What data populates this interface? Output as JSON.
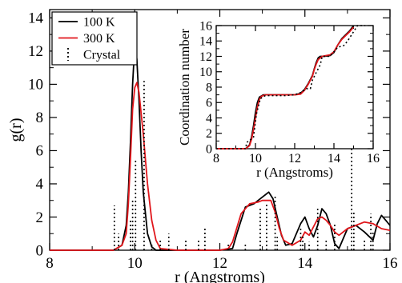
{
  "chart_data": [
    {
      "panel": "main",
      "type": "line",
      "xlabel": "r (Angstroms)",
      "ylabel": "g(r)",
      "xlim": [
        8,
        16
      ],
      "ylim": [
        0,
        14.5
      ],
      "xticks": [
        8,
        10,
        12,
        14,
        16
      ],
      "yticks": [
        0,
        2,
        4,
        6,
        8,
        10,
        12,
        14
      ],
      "grid": false,
      "legend_position": "top-left",
      "series": [
        {
          "name": "100 K",
          "color": "#000000",
          "style": "solid",
          "x": [
            8.0,
            9.0,
            9.5,
            9.7,
            9.8,
            9.85,
            9.9,
            9.95,
            10.0,
            10.05,
            10.1,
            10.15,
            10.2,
            10.3,
            10.4,
            10.5,
            11.0,
            12.0,
            12.3,
            12.4,
            12.6,
            12.8,
            13.0,
            13.15,
            13.25,
            13.35,
            13.45,
            13.55,
            13.7,
            13.9,
            14.0,
            14.1,
            14.2,
            14.3,
            14.4,
            14.5,
            14.6,
            14.7,
            14.8,
            15.0,
            15.2,
            15.4,
            15.6,
            15.7,
            15.8,
            15.9,
            16.0
          ],
          "y": [
            0,
            0,
            0,
            0.3,
            1.5,
            3.5,
            6.5,
            10.0,
            12.4,
            11.5,
            9.0,
            6.0,
            3.5,
            1.0,
            0.2,
            0,
            0,
            0,
            0.1,
            1.0,
            2.6,
            2.8,
            3.2,
            3.5,
            3.1,
            2.0,
            0.9,
            0.3,
            0.4,
            1.6,
            2.0,
            1.3,
            0.8,
            1.5,
            2.5,
            2.2,
            1.5,
            0.4,
            0.1,
            1.3,
            1.5,
            1.1,
            0.6,
            1.6,
            2.1,
            1.8,
            1.5
          ]
        },
        {
          "name": "300 K",
          "color": "#e0161b",
          "style": "solid",
          "x": [
            8.0,
            9.0,
            9.5,
            9.7,
            9.8,
            9.85,
            9.9,
            9.95,
            10.0,
            10.05,
            10.1,
            10.2,
            10.3,
            10.4,
            10.5,
            10.6,
            11.0,
            12.0,
            12.2,
            12.3,
            12.5,
            12.7,
            12.9,
            13.0,
            13.2,
            13.3,
            13.4,
            13.5,
            13.7,
            13.9,
            14.0,
            14.1,
            14.2,
            14.3,
            14.4,
            14.5,
            14.6,
            14.7,
            14.8,
            15.0,
            15.2,
            15.4,
            15.6,
            15.8,
            16.0
          ],
          "y": [
            0,
            0,
            0,
            0.3,
            1.0,
            2.8,
            5.5,
            8.5,
            9.8,
            10.1,
            9.5,
            7.0,
            4.0,
            1.8,
            0.6,
            0.1,
            0,
            0,
            0.1,
            0.5,
            2.2,
            2.8,
            2.9,
            3.0,
            3.0,
            2.3,
            1.3,
            0.6,
            0.3,
            0.6,
            1.1,
            0.9,
            1.4,
            1.9,
            2.0,
            1.8,
            1.5,
            1.1,
            0.9,
            1.3,
            1.5,
            1.7,
            1.6,
            1.3,
            1.2
          ]
        },
        {
          "name": "Crystal",
          "color": "#000000",
          "style": "dotted-sticks",
          "x": [
            9.52,
            9.62,
            9.9,
            9.95,
            10.02,
            10.22,
            10.4,
            10.6,
            10.8,
            11.2,
            11.5,
            11.65,
            12.2,
            12.6,
            12.95,
            13.1,
            13.3,
            13.35,
            13.9,
            13.95,
            14.1,
            14.3,
            14.5,
            14.7,
            15.1,
            15.15,
            15.4,
            15.55,
            15.6
          ],
          "y": [
            2.7,
            1.0,
            1.8,
            3.0,
            5.4,
            10.2,
            0.4,
            0.6,
            1.0,
            0.6,
            0.6,
            1.4,
            0.4,
            0.4,
            2.5,
            2.8,
            3.3,
            0.8,
            1.4,
            0.9,
            0.5,
            2.5,
            0.6,
            1.6,
            9.5,
            2.4,
            0.6,
            2.2,
            1.1
          ]
        }
      ]
    },
    {
      "panel": "inset",
      "type": "line",
      "xlabel": "r (Angstroms)",
      "ylabel": "Coordination number",
      "xlim": [
        8,
        16
      ],
      "ylim": [
        0,
        16
      ],
      "xticks": [
        8,
        10,
        12,
        14,
        16
      ],
      "yticks": [
        0,
        2,
        4,
        6,
        8,
        10,
        12,
        14,
        16
      ],
      "grid": false,
      "series": [
        {
          "name": "100 K",
          "color": "#000000",
          "style": "solid",
          "x": [
            8.0,
            9.5,
            9.7,
            9.8,
            9.9,
            10.0,
            10.1,
            10.2,
            10.4,
            10.8,
            11.5,
            12.0,
            12.3,
            12.5,
            12.7,
            12.9,
            13.0,
            13.1,
            13.2,
            13.3,
            13.5,
            13.8,
            14.0,
            14.2,
            14.4,
            14.6,
            14.8,
            15.0
          ],
          "y": [
            0,
            0,
            0.5,
            1.5,
            3.0,
            4.7,
            6.0,
            6.7,
            7.0,
            7.0,
            7.0,
            7.0,
            7.2,
            7.7,
            8.5,
            9.5,
            10.4,
            11.2,
            11.8,
            12.0,
            12.0,
            12.1,
            12.5,
            13.5,
            14.3,
            14.8,
            15.3,
            16.0
          ]
        },
        {
          "name": "300 K",
          "color": "#e0161b",
          "style": "solid",
          "x": [
            8.0,
            9.5,
            9.7,
            9.8,
            9.9,
            10.0,
            10.1,
            10.2,
            10.3,
            10.5,
            11.0,
            12.0,
            12.3,
            12.5,
            12.7,
            12.9,
            13.0,
            13.1,
            13.2,
            13.4,
            13.6,
            13.8,
            14.0,
            14.2,
            14.4,
            14.6,
            14.8,
            15.0
          ],
          "y": [
            0,
            0,
            0.4,
            1.2,
            2.5,
            4.0,
            5.4,
            6.4,
            6.8,
            7.0,
            7.0,
            7.0,
            7.1,
            7.6,
            8.4,
            9.4,
            10.3,
            11.0,
            11.6,
            12.0,
            12.1,
            12.2,
            12.6,
            13.5,
            14.2,
            14.7,
            15.2,
            15.8
          ]
        },
        {
          "name": "Crystal",
          "color": "#000000",
          "style": "dotted",
          "x": [
            8.0,
            9.5,
            9.55,
            9.9,
            9.95,
            10.05,
            10.25,
            10.5,
            11.5,
            12.0,
            12.3,
            12.6,
            12.8,
            12.9,
            13.1,
            13.3,
            13.4,
            13.8,
            14.0,
            14.2,
            14.5,
            14.7,
            15.2,
            15.6
          ],
          "y": [
            0,
            0,
            0.8,
            1.5,
            2.5,
            4.5,
            6.5,
            6.9,
            6.9,
            7.0,
            7.3,
            7.8,
            7.8,
            8.9,
            9.9,
            10.9,
            12.0,
            12.0,
            12.6,
            13.2,
            13.4,
            14.0,
            16.0,
            16.0
          ]
        }
      ]
    }
  ],
  "legend": {
    "items": [
      {
        "label": "100 K",
        "color": "#000000",
        "style": "solid"
      },
      {
        "label": "300 K",
        "color": "#e0161b",
        "style": "solid"
      },
      {
        "label": "Crystal",
        "color": "#000000",
        "style": "dotted"
      }
    ]
  }
}
